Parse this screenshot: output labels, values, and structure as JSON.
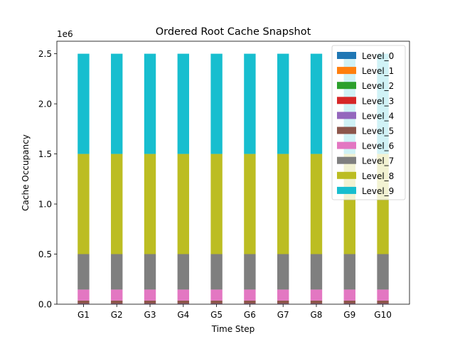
{
  "chart_data": {
    "type": "bar",
    "stacked": true,
    "title": "Ordered Root Cache Snapshot",
    "xlabel": "Time Step",
    "ylabel": "Cache Occupancy",
    "y_offset_label": "1e6",
    "y_scale_factor": 1000000,
    "ylim": [
      0,
      2625000
    ],
    "y_ticks": [
      0,
      500000,
      1000000,
      1500000,
      2000000,
      2500000
    ],
    "y_tick_labels": [
      "0.0",
      "0.5",
      "1.0",
      "1.5",
      "2.0",
      "2.5"
    ],
    "grid": false,
    "legend_position": "top-right",
    "categories": [
      "G1",
      "G2",
      "G3",
      "G4",
      "G5",
      "G6",
      "G7",
      "G8",
      "G9",
      "G10"
    ],
    "series": [
      {
        "name": "Level_0",
        "color": "#1f77b4",
        "values": [
          1,
          1,
          1,
          1,
          1,
          1,
          1,
          1,
          1,
          1
        ]
      },
      {
        "name": "Level_1",
        "color": "#ff7f0e",
        "values": [
          10,
          10,
          10,
          10,
          10,
          10,
          10,
          10,
          10,
          10
        ]
      },
      {
        "name": "Level_2",
        "color": "#2ca02c",
        "values": [
          100,
          100,
          100,
          100,
          100,
          100,
          100,
          100,
          100,
          100
        ]
      },
      {
        "name": "Level_3",
        "color": "#d62728",
        "values": [
          1000,
          1000,
          1000,
          1000,
          1000,
          1000,
          1000,
          1000,
          1000,
          1000
        ]
      },
      {
        "name": "Level_4",
        "color": "#9467bd",
        "values": [
          5000,
          5000,
          5000,
          5000,
          5000,
          5000,
          5000,
          5000,
          5000,
          5000
        ]
      },
      {
        "name": "Level_5",
        "color": "#8c564b",
        "values": [
          30000,
          30000,
          30000,
          30000,
          30000,
          30000,
          30000,
          30000,
          30000,
          30000
        ]
      },
      {
        "name": "Level_6",
        "color": "#e377c2",
        "values": [
          110000,
          110000,
          110000,
          110000,
          110000,
          110000,
          110000,
          110000,
          110000,
          110000
        ]
      },
      {
        "name": "Level_7",
        "color": "#7f7f7f",
        "values": [
          354000,
          354000,
          354000,
          354000,
          354000,
          354000,
          354000,
          354000,
          354000,
          354000
        ]
      },
      {
        "name": "Level_8",
        "color": "#bcbd22",
        "values": [
          1000000,
          1000000,
          1000000,
          1000000,
          1000000,
          1000000,
          1000000,
          1000000,
          1000000,
          1000000
        ]
      },
      {
        "name": "Level_9",
        "color": "#17becf",
        "values": [
          1000000,
          1000000,
          1000000,
          1000000,
          1000000,
          1000000,
          1000000,
          1000000,
          1000000,
          1000000
        ]
      }
    ]
  }
}
